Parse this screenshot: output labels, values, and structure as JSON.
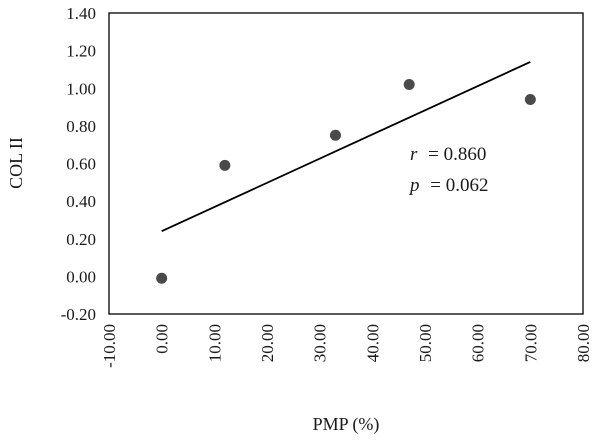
{
  "chart_data": {
    "type": "scatter",
    "title": "",
    "xlabel": "PMP (%)",
    "ylabel": "COL II",
    "xlim": [
      -10,
      80
    ],
    "ylim": [
      -0.2,
      1.4
    ],
    "xticks": [
      "-10.00",
      "0.00",
      "10.00",
      "20.00",
      "30.00",
      "40.00",
      "50.00",
      "60.00",
      "70.00",
      "80.00"
    ],
    "yticks": [
      "1.40",
      "1.20",
      "1.00",
      "0.80",
      "0.60",
      "0.40",
      "0.20",
      "0.00",
      "-0.20"
    ],
    "series": [
      {
        "points": [
          {
            "x": 0,
            "y": -0.01
          },
          {
            "x": 12,
            "y": 0.59
          },
          {
            "x": 33,
            "y": 0.75
          },
          {
            "x": 47,
            "y": 1.02
          },
          {
            "x": 70,
            "y": 0.94
          }
        ],
        "marker_color": "#4a4a4a"
      }
    ],
    "trendline": {
      "type": "linear",
      "x": [
        0,
        70
      ],
      "y": [
        0.24,
        1.14
      ],
      "color": "#000000"
    },
    "annotation": {
      "r_symbol": "r",
      "r_value": "= 0.860",
      "p_symbol": "p",
      "p_value": "= 0.062"
    },
    "grid": false,
    "legend": "none"
  }
}
